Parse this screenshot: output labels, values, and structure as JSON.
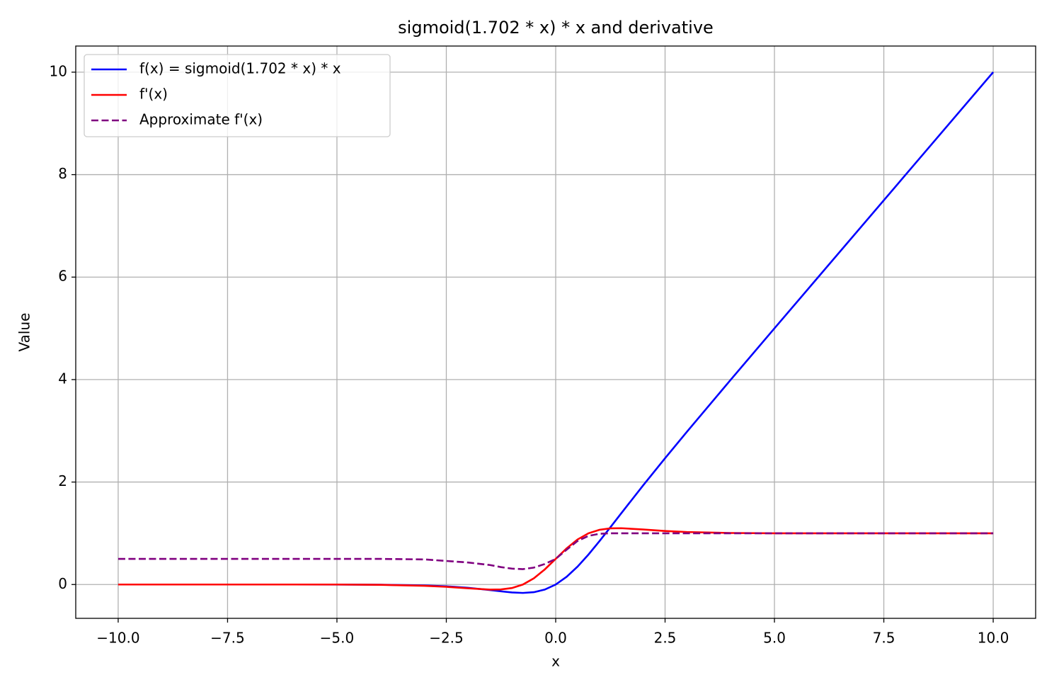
{
  "chart_data": {
    "type": "line",
    "title": "sigmoid(1.702 * x) * x and derivative",
    "x_label": "x",
    "y_label": "Value",
    "x": [
      -10,
      -8,
      -6,
      -5,
      -4,
      -3,
      -2.5,
      -2,
      -1.5,
      -1.25,
      -1,
      -0.75,
      -0.5,
      -0.25,
      0,
      0.25,
      0.5,
      0.75,
      1,
      1.25,
      1.5,
      2,
      2.5,
      3,
      4,
      5,
      6,
      8,
      10
    ],
    "series": [
      {
        "name": "f(x) = sigmoid(1.702 * x) * x",
        "color": "#0000ff",
        "linestyle": "solid",
        "values": [
          0,
          0,
          0,
          -0.001,
          -0.004,
          -0.018,
          -0.035,
          -0.064,
          -0.108,
          -0.133,
          -0.154,
          -0.164,
          -0.15,
          -0.099,
          0,
          0.151,
          0.35,
          0.586,
          0.846,
          1.117,
          1.392,
          1.936,
          2.465,
          2.982,
          3.996,
          5,
          6,
          8,
          10
        ]
      },
      {
        "name": "f'(x)",
        "color": "#ff0000",
        "linestyle": "solid",
        "values": [
          0,
          0,
          0,
          0,
          -0.006,
          -0.025,
          -0.045,
          -0.074,
          -0.099,
          -0.096,
          -0.068,
          0,
          0.121,
          0.294,
          0.5,
          0.706,
          0.879,
          1,
          1.068,
          1.096,
          1.099,
          1.074,
          1.045,
          1.025,
          1.006,
          1,
          1,
          1,
          1
        ]
      },
      {
        "name": "Approximate f'(x)",
        "color": "#800080",
        "linestyle": "dashed",
        "values": [
          0.5,
          0.5,
          0.5,
          0.5,
          0.5,
          0.49,
          0.46,
          0.43,
          0.38,
          0.34,
          0.31,
          0.3,
          0.33,
          0.4,
          0.5,
          0.68,
          0.85,
          0.95,
          0.99,
          1,
          1,
          1,
          1,
          1,
          1,
          1,
          1,
          1,
          1
        ]
      }
    ],
    "xlim": [
      -10.97,
      10.97
    ],
    "ylim": [
      -0.66,
      10.51
    ],
    "xticks": [
      {
        "value": -10,
        "label": "−10.0"
      },
      {
        "value": -7.5,
        "label": "−7.5"
      },
      {
        "value": -5,
        "label": "−5.0"
      },
      {
        "value": -2.5,
        "label": "−2.5"
      },
      {
        "value": 0,
        "label": "0.0"
      },
      {
        "value": 2.5,
        "label": "2.5"
      },
      {
        "value": 5,
        "label": "5.0"
      },
      {
        "value": 7.5,
        "label": "7.5"
      },
      {
        "value": 10,
        "label": "10.0"
      }
    ],
    "yticks": [
      0,
      2,
      4,
      6,
      8,
      10
    ],
    "grid": true,
    "legend": "upper-left"
  }
}
